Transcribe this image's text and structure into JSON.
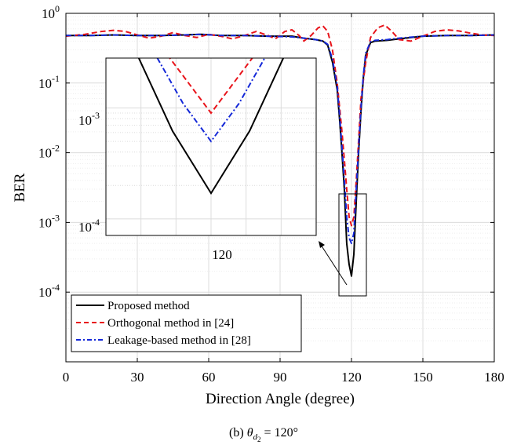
{
  "chart_data": {
    "type": "line",
    "xlabel": "Direction Angle (degree)",
    "ylabel": "BER",
    "xlim": [
      0,
      180
    ],
    "ylim_exponent": [
      -5,
      0
    ],
    "yscale": "log",
    "grid": true,
    "x_ticks": [
      "0",
      "30",
      "60",
      "90",
      "120",
      "150",
      "180"
    ],
    "y_ticks": [
      {
        "base": "10",
        "exp": "0",
        "value": 1
      },
      {
        "base": "10",
        "exp": "-1",
        "value": 0.1
      },
      {
        "base": "10",
        "exp": "-2",
        "value": 0.01
      },
      {
        "base": "10",
        "exp": "-3",
        "value": 0.001
      },
      {
        "base": "10",
        "exp": "-4",
        "value": 0.0001
      }
    ],
    "legend_position": "bottom-left",
    "series": [
      {
        "name": "Proposed method",
        "color": "#000000",
        "style": "solid",
        "points": [
          [
            0,
            0.48
          ],
          [
            10,
            0.48
          ],
          [
            20,
            0.49
          ],
          [
            30,
            0.48
          ],
          [
            40,
            0.48
          ],
          [
            50,
            0.49
          ],
          [
            57,
            0.5
          ],
          [
            65,
            0.48
          ],
          [
            75,
            0.48
          ],
          [
            85,
            0.47
          ],
          [
            95,
            0.47
          ],
          [
            100,
            0.44
          ],
          [
            105,
            0.42
          ],
          [
            108,
            0.4
          ],
          [
            110,
            0.35
          ],
          [
            112,
            0.2
          ],
          [
            114,
            0.08
          ],
          [
            115,
            0.03
          ],
          [
            116,
            0.01
          ],
          [
            117,
            0.003
          ],
          [
            118,
            0.0005
          ],
          [
            119,
            0.00025
          ],
          [
            120,
            0.00017
          ],
          [
            121,
            0.00035
          ],
          [
            122,
            0.002
          ],
          [
            123,
            0.01
          ],
          [
            124,
            0.04
          ],
          [
            125,
            0.12
          ],
          [
            126,
            0.25
          ],
          [
            128,
            0.38
          ],
          [
            130,
            0.4
          ],
          [
            135,
            0.41
          ],
          [
            140,
            0.43
          ],
          [
            150,
            0.47
          ],
          [
            160,
            0.48
          ],
          [
            170,
            0.48
          ],
          [
            180,
            0.49
          ]
        ]
      },
      {
        "name": "Orthogonal method in [24]",
        "color": "#e8141b",
        "style": "dashed",
        "points": [
          [
            0,
            0.47
          ],
          [
            8,
            0.5
          ],
          [
            15,
            0.55
          ],
          [
            20,
            0.57
          ],
          [
            25,
            0.55
          ],
          [
            30,
            0.49
          ],
          [
            35,
            0.44
          ],
          [
            40,
            0.47
          ],
          [
            45,
            0.53
          ],
          [
            50,
            0.48
          ],
          [
            55,
            0.45
          ],
          [
            60,
            0.5
          ],
          [
            65,
            0.47
          ],
          [
            70,
            0.43
          ],
          [
            75,
            0.48
          ],
          [
            80,
            0.55
          ],
          [
            85,
            0.48
          ],
          [
            88,
            0.43
          ],
          [
            92,
            0.55
          ],
          [
            95,
            0.58
          ],
          [
            98,
            0.48
          ],
          [
            100,
            0.4
          ],
          [
            103,
            0.48
          ],
          [
            106,
            0.62
          ],
          [
            108,
            0.66
          ],
          [
            110,
            0.55
          ],
          [
            112,
            0.3
          ],
          [
            114,
            0.1
          ],
          [
            116,
            0.02
          ],
          [
            117,
            0.008
          ],
          [
            118,
            0.003
          ],
          [
            119,
            0.0012
          ],
          [
            120,
            0.0009
          ],
          [
            121,
            0.0012
          ],
          [
            122,
            0.004
          ],
          [
            123,
            0.015
          ],
          [
            124,
            0.06
          ],
          [
            126,
            0.2
          ],
          [
            128,
            0.45
          ],
          [
            131,
            0.62
          ],
          [
            134,
            0.68
          ],
          [
            137,
            0.55
          ],
          [
            140,
            0.42
          ],
          [
            145,
            0.4
          ],
          [
            150,
            0.47
          ],
          [
            155,
            0.55
          ],
          [
            160,
            0.58
          ],
          [
            165,
            0.56
          ],
          [
            170,
            0.52
          ],
          [
            175,
            0.49
          ],
          [
            180,
            0.48
          ]
        ]
      },
      {
        "name": "Leakage-based method in [28]",
        "color": "#1428d8",
        "style": "dashdot",
        "points": [
          [
            0,
            0.48
          ],
          [
            10,
            0.48
          ],
          [
            20,
            0.49
          ],
          [
            30,
            0.48
          ],
          [
            40,
            0.48
          ],
          [
            50,
            0.49
          ],
          [
            57,
            0.5
          ],
          [
            65,
            0.48
          ],
          [
            75,
            0.48
          ],
          [
            85,
            0.47
          ],
          [
            95,
            0.46
          ],
          [
            100,
            0.44
          ],
          [
            105,
            0.42
          ],
          [
            108,
            0.4
          ],
          [
            110,
            0.36
          ],
          [
            112,
            0.22
          ],
          [
            114,
            0.09
          ],
          [
            115,
            0.035
          ],
          [
            116,
            0.012
          ],
          [
            117,
            0.004
          ],
          [
            118,
            0.0012
          ],
          [
            119,
            0.0006
          ],
          [
            120,
            0.0005
          ],
          [
            121,
            0.0007
          ],
          [
            122,
            0.003
          ],
          [
            123,
            0.012
          ],
          [
            124,
            0.045
          ],
          [
            125,
            0.13
          ],
          [
            126,
            0.27
          ],
          [
            128,
            0.39
          ],
          [
            130,
            0.41
          ],
          [
            135,
            0.42
          ],
          [
            140,
            0.44
          ],
          [
            150,
            0.47
          ],
          [
            160,
            0.48
          ],
          [
            170,
            0.48
          ],
          [
            180,
            0.49
          ]
        ]
      }
    ],
    "inset": {
      "x_tick": "120",
      "y_tick": {
        "base": "10",
        "exp": "-4"
      },
      "y_tick2": {
        "base": "10",
        "exp": "-3"
      }
    }
  },
  "caption": {
    "prefix": "(b)",
    "theta": "θ",
    "sub_d": "d",
    "sub_2": "2",
    "rest": " = 120°"
  }
}
